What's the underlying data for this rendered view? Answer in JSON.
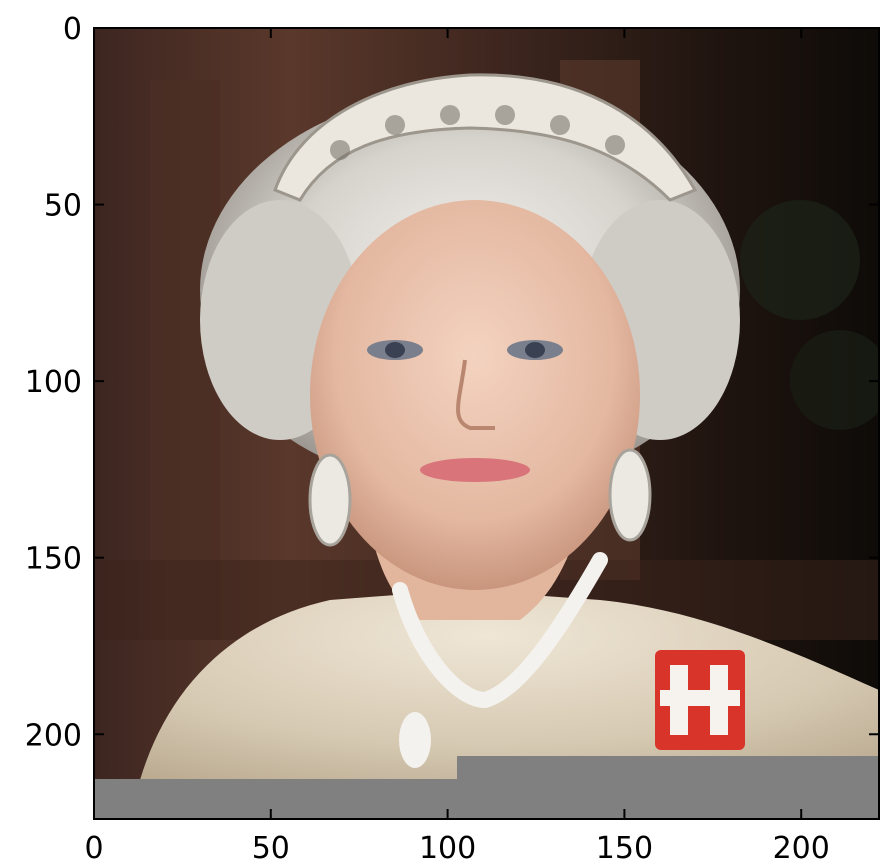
{
  "image": {
    "description_icon": "portrait-photo-icon",
    "palette": {
      "background_dark": "#2a1a14",
      "background_wood": "#4a2f24",
      "hair": "#d9d6d0",
      "skin": "#e9c2ac",
      "lips": "#d8747a",
      "dress": "#ddd2bf",
      "tiara": "#ece9e2",
      "brooch_red": "#d8342a",
      "pad_gray": "#808080"
    }
  },
  "chart_data": {
    "type": "image",
    "xlim": [
      0,
      222
    ],
    "ylim": [
      0,
      224
    ],
    "x_ticks": [
      0,
      50,
      100,
      150,
      200
    ],
    "y_ticks": [
      0,
      50,
      100,
      150,
      200
    ],
    "x_tick_labels": [
      "0",
      "50",
      "100",
      "150",
      "200"
    ],
    "y_tick_labels": [
      "0",
      "50",
      "100",
      "150",
      "200"
    ],
    "y_inverted": true
  }
}
